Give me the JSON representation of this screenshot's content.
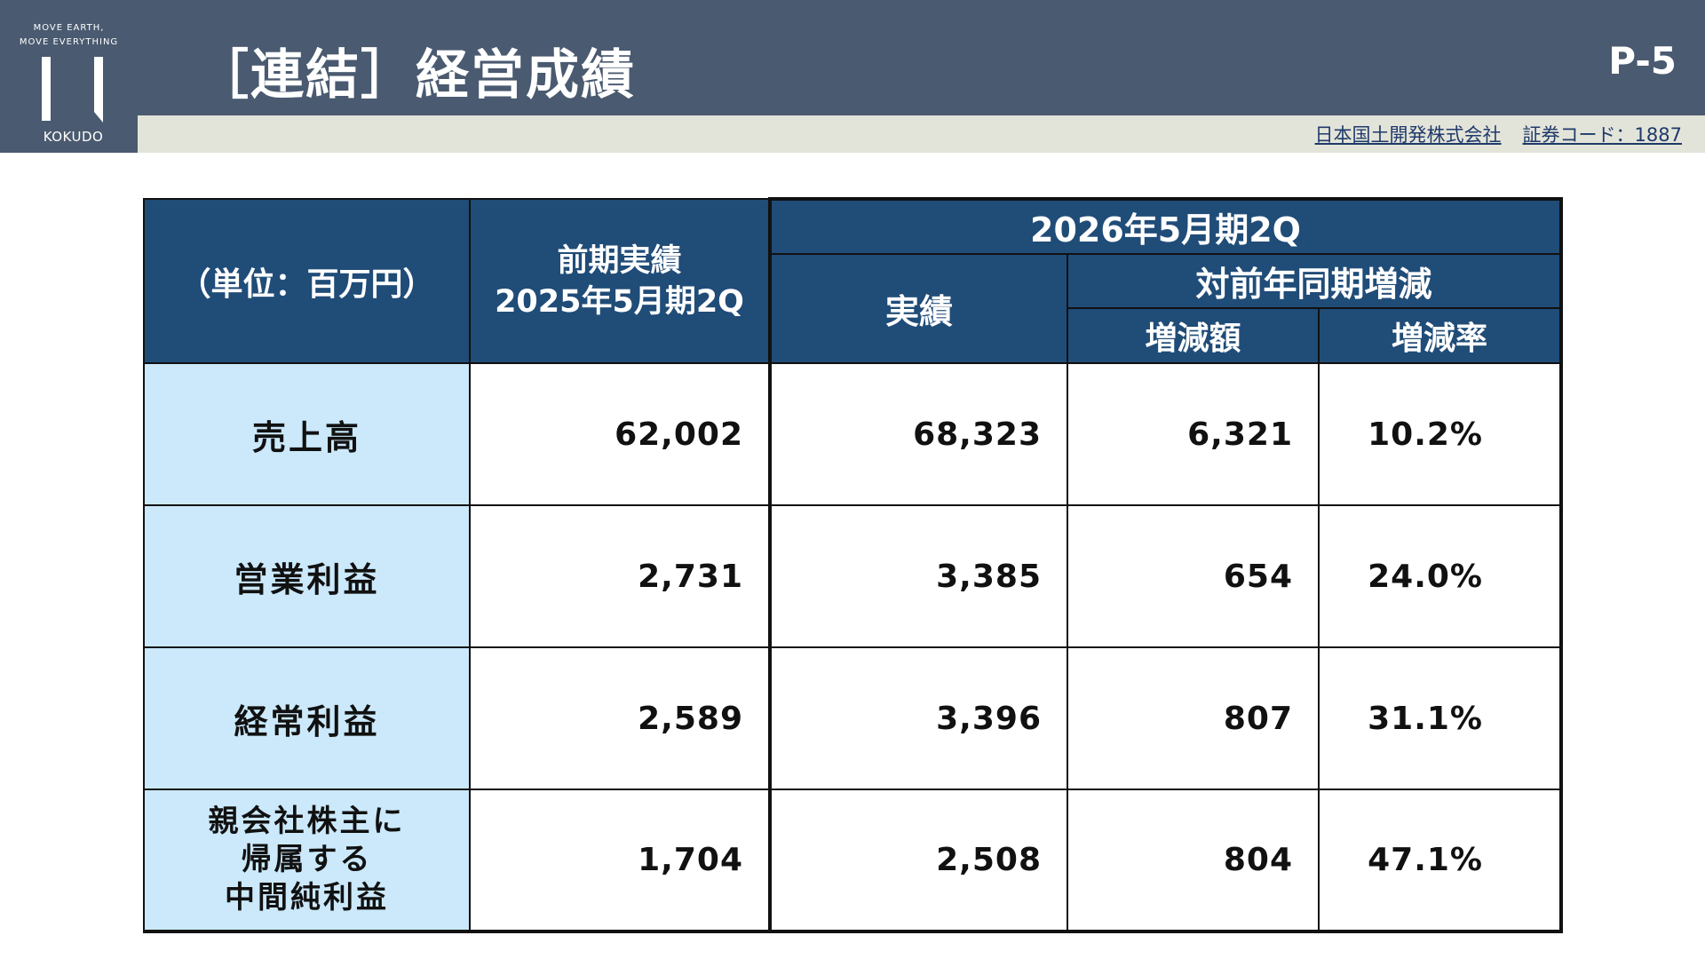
{
  "logo": {
    "tagline": "MOVE EARTH,\nMOVE EVERYTHING",
    "wordmark": "KOKUDO"
  },
  "header": {
    "title": "［連結］経営成績",
    "page": "P-5",
    "company": "日本国土開発株式会社",
    "stock_code": "証券コード：1887"
  },
  "table": {
    "unit_label": "（単位：百万円）",
    "prev_header": [
      "前期実績",
      "2025年5月期2Q"
    ],
    "current_group": "2026年5月期2Q",
    "actual_header": "実績",
    "yoy_header": "対前年同期増減",
    "diff_header": "増減額",
    "rate_header": "増減率",
    "rows": [
      {
        "label": [
          "売上高"
        ],
        "prev": "62,002",
        "actual": "68,323",
        "diff": "6,321",
        "rate": "10.2%"
      },
      {
        "label": [
          "営業利益"
        ],
        "prev": "2,731",
        "actual": "3,385",
        "diff": "654",
        "rate": "24.0%"
      },
      {
        "label": [
          "経常利益"
        ],
        "prev": "2,589",
        "actual": "3,396",
        "diff": "807",
        "rate": "31.1%"
      },
      {
        "label": [
          "親会社株主に",
          "帰属する",
          "中間純利益"
        ],
        "prev": "1,704",
        "actual": "2,508",
        "diff": "804",
        "rate": "47.1%"
      }
    ]
  },
  "colors": {
    "header_bar": "#4a5a70",
    "table_header": "#204c78",
    "label_cell": "#cbe9fb",
    "sub_bar": "#e3e4d9"
  }
}
